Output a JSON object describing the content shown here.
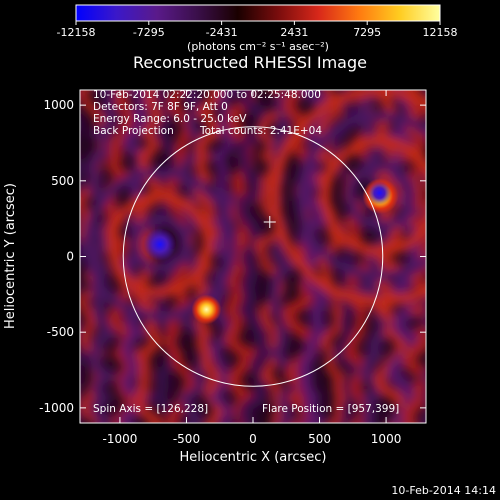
{
  "chart_data": {
    "type": "heatmap",
    "title": "Reconstructed RHESSI Image",
    "xlabel": "Heliocentric X (arcsec)",
    "ylabel": "Heliocentric Y (arcsec)",
    "xlim": [
      -1300,
      1300
    ],
    "ylim": [
      -1100,
      1100
    ],
    "x_ticks": [
      -1000,
      -500,
      0,
      500,
      1000
    ],
    "y_ticks": [
      -1000,
      -500,
      0,
      500,
      1000
    ],
    "colorbar": {
      "ticks": [
        -12158,
        -7295,
        -2431,
        2431,
        7295,
        12158
      ],
      "range": [
        -12158,
        12158
      ],
      "unit_label": "(photons cm⁻² s⁻¹ asec⁻²)",
      "colors": [
        "#0000ff",
        "#3b18c9",
        "#5a1a8a",
        "#3a0f4a",
        "#1a0000",
        "#7a0d0d",
        "#d8281a",
        "#ff7a10",
        "#ffcc20",
        "#ffffa0"
      ]
    },
    "annotations": [
      "10-Feb-2014 02:22:20.000 to 02:25:48.000",
      "Detectors: 7F 8F 9F, Att 0",
      "Energy Range: 6.0 - 25.0 keV",
      "Back Projection",
      "Total counts: 2.41E+04",
      "Spin Axis = [126,228]",
      "Flare Position = [957,399]"
    ],
    "spin_axis": [
      126,
      228
    ],
    "flare_position": [
      957,
      399
    ],
    "solar_limb_radius": 975,
    "sources": [
      {
        "x": 957,
        "y": 399,
        "intensity": 12158
      },
      {
        "x": -350,
        "y": -350,
        "intensity": 9000
      },
      {
        "x": -700,
        "y": 80,
        "intensity": -10500
      },
      {
        "x": 950,
        "y": 420,
        "intensity": -6000
      }
    ],
    "footer_timestamp": "10-Feb-2014 14:14"
  }
}
